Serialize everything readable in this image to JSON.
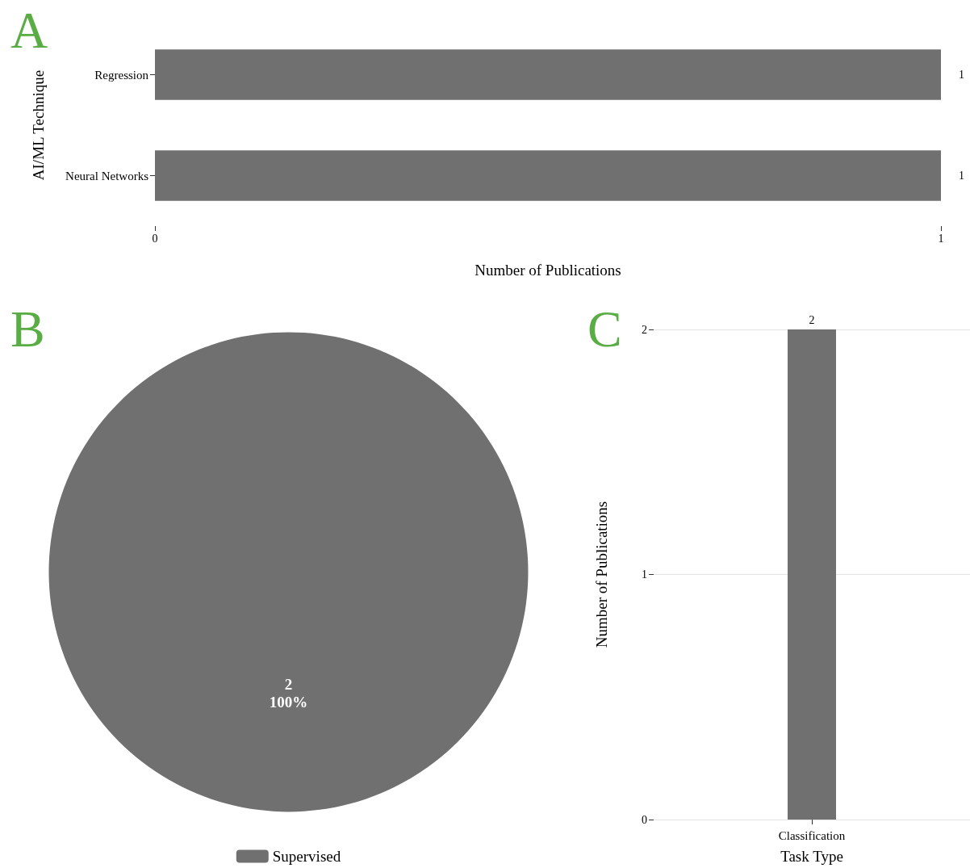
{
  "chart_data": [
    {
      "type": "bar",
      "title": "A",
      "orientation": "horizontal",
      "categories": [
        "Regression",
        "Neural Networks"
      ],
      "values": [
        1,
        1
      ],
      "color": "#707070",
      "xlim": [
        0,
        1
      ],
      "xticks": [
        0,
        1
      ],
      "xlabel": "Number of Publications",
      "ylabel": "AI/ML Technique",
      "data_labels": true,
      "grid": false
    },
    {
      "type": "pie",
      "title": "B",
      "categories": [
        "Supervised"
      ],
      "values": [
        2
      ],
      "colors": [
        "#707070"
      ],
      "data_labels": true,
      "annotations": [
        "100%"
      ],
      "legend": "bottom"
    },
    {
      "type": "bar",
      "title": "C",
      "categories": [
        "Classification"
      ],
      "values": [
        2
      ],
      "color": "#707070",
      "ylim": [
        0,
        2
      ],
      "yticks": [
        0,
        1,
        2
      ],
      "xlabel": "Task Type",
      "ylabel": "Number of Publications",
      "data_labels": true,
      "grid": "y"
    }
  ]
}
